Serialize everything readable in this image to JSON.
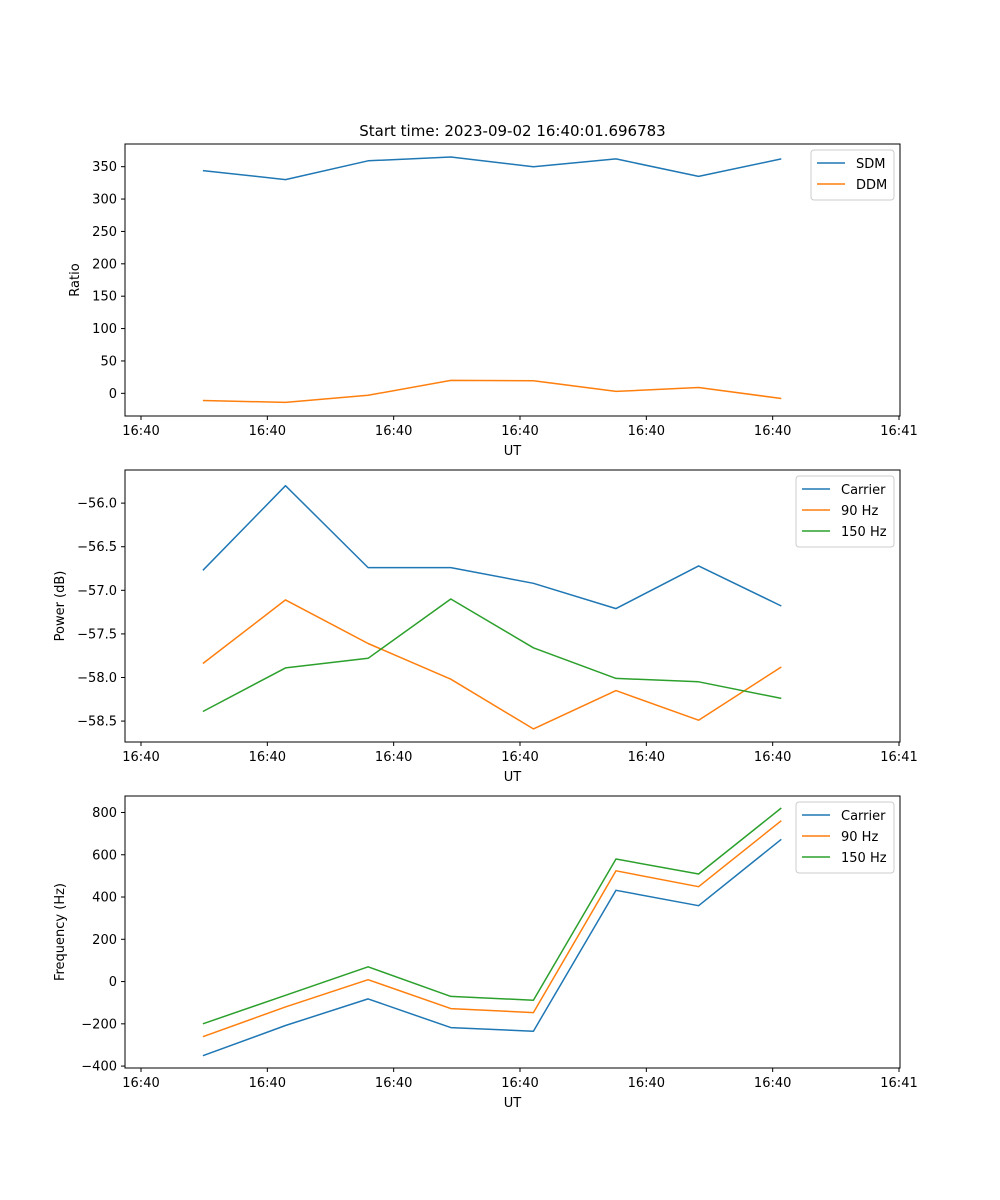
{
  "chart_data": [
    {
      "type": "line",
      "title": "Start time: 2023-09-02 16:40:01.696783",
      "xlabel": "UT",
      "ylabel": "Ratio",
      "xlim": [
        -0.13,
        6.0
      ],
      "ylim": [
        -35,
        385
      ],
      "xticks": [
        0,
        1,
        2,
        3,
        4,
        5,
        6
      ],
      "xtick_labels": [
        "16:40",
        "16:40",
        "16:40",
        "16:40",
        "16:40",
        "16:40",
        "16:41"
      ],
      "yticks": [
        0,
        50,
        100,
        150,
        200,
        250,
        300,
        350
      ],
      "ytick_labels": [
        "0",
        "50",
        "100",
        "150",
        "200",
        "250",
        "300",
        "350"
      ],
      "x": [
        0.49,
        1.144,
        1.798,
        2.452,
        3.106,
        3.76,
        4.414,
        5.068
      ],
      "series": [
        {
          "name": "SDM",
          "color": "#1f77b4",
          "values": [
            344,
            330,
            359,
            365,
            350,
            362,
            335,
            362
          ]
        },
        {
          "name": "DDM",
          "color": "#ff7f0e",
          "values": [
            -11,
            -14,
            -3,
            20,
            19.5,
            3,
            9,
            -8
          ]
        }
      ],
      "legend": "top-right",
      "grid": false
    },
    {
      "type": "line",
      "title": "",
      "xlabel": "UT",
      "ylabel": "Power (dB)",
      "xlim": [
        -0.13,
        6.0
      ],
      "ylim": [
        -58.74,
        -55.62
      ],
      "xticks": [
        0,
        1,
        2,
        3,
        4,
        5,
        6
      ],
      "xtick_labels": [
        "16:40",
        "16:40",
        "16:40",
        "16:40",
        "16:40",
        "16:40",
        "16:41"
      ],
      "yticks": [
        -56.0,
        -56.5,
        -57.0,
        -57.5,
        -58.0,
        -58.5
      ],
      "ytick_labels": [
        "−56.0",
        "−56.5",
        "−57.0",
        "−57.5",
        "−58.0",
        "−58.5"
      ],
      "x": [
        0.49,
        1.144,
        1.798,
        2.452,
        3.106,
        3.76,
        4.414,
        5.068
      ],
      "series": [
        {
          "name": "Carrier",
          "color": "#1f77b4",
          "values": [
            -56.77,
            -55.8,
            -56.74,
            -56.74,
            -56.92,
            -57.21,
            -56.72,
            -57.18
          ]
        },
        {
          "name": "90 Hz",
          "color": "#ff7f0e",
          "values": [
            -57.84,
            -57.11,
            -57.61,
            -58.02,
            -58.59,
            -58.15,
            -58.49,
            -57.88
          ]
        },
        {
          "name": "150 Hz",
          "color": "#2ca02c",
          "values": [
            -58.39,
            -57.89,
            -57.78,
            -57.1,
            -57.66,
            -58.01,
            -58.05,
            -58.24
          ]
        }
      ],
      "legend": "top-right",
      "grid": false
    },
    {
      "type": "line",
      "title": "",
      "xlabel": "UT",
      "ylabel": "Frequency (Hz)",
      "xlim": [
        -0.13,
        6.0
      ],
      "ylim": [
        -409,
        878
      ],
      "xticks": [
        0,
        1,
        2,
        3,
        4,
        5,
        6
      ],
      "xtick_labels": [
        "16:40",
        "16:40",
        "16:40",
        "16:40",
        "16:40",
        "16:40",
        "16:41"
      ],
      "yticks": [
        -400,
        -200,
        0,
        200,
        400,
        600,
        800
      ],
      "ytick_labels": [
        "−400",
        "−200",
        "0",
        "200",
        "400",
        "600",
        "800"
      ],
      "x": [
        0.49,
        1.144,
        1.798,
        2.452,
        3.106,
        3.76,
        4.414,
        5.068
      ],
      "series": [
        {
          "name": "Carrier",
          "color": "#1f77b4",
          "values": [
            -351,
            -208,
            -82,
            -218,
            -235,
            432,
            359,
            673
          ]
        },
        {
          "name": "90 Hz",
          "color": "#ff7f0e",
          "values": [
            -261,
            -120,
            9,
            -128,
            -147,
            524,
            449,
            761
          ]
        },
        {
          "name": "150 Hz",
          "color": "#2ca02c",
          "values": [
            -200,
            -65,
            70,
            -70,
            -88,
            580,
            509,
            821
          ]
        }
      ],
      "legend": "top-right",
      "grid": false
    }
  ]
}
